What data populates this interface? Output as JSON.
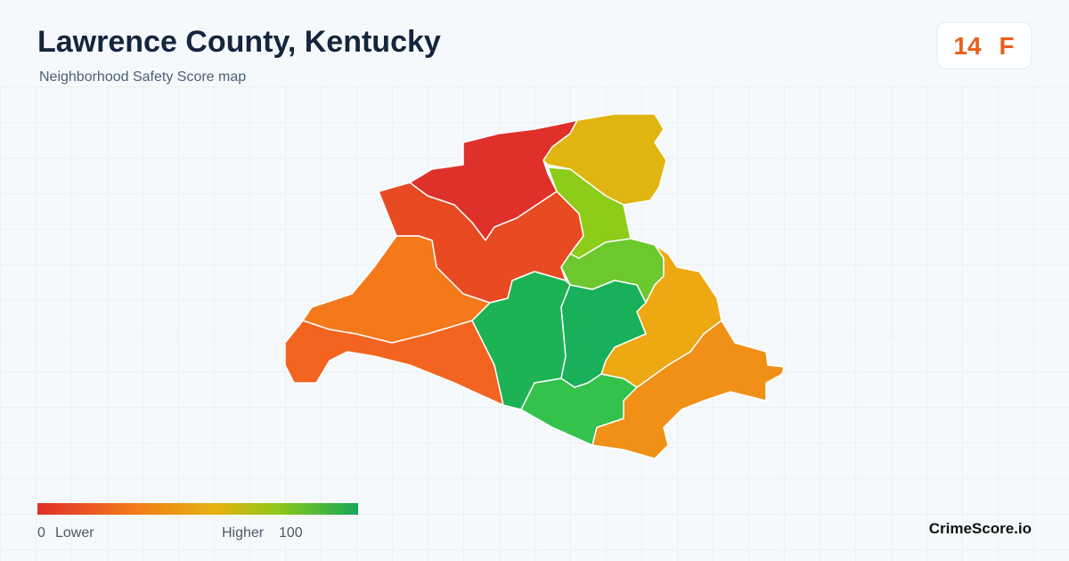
{
  "header": {
    "title": "Lawrence County, Kentucky",
    "subtitle": "Neighborhood Safety Score map"
  },
  "score": {
    "value": 14,
    "grade": "F"
  },
  "legend": {
    "min": 0,
    "min_label": "Lower",
    "max_label": "Higher",
    "max": 100
  },
  "brand": "CrimeScore.io"
}
